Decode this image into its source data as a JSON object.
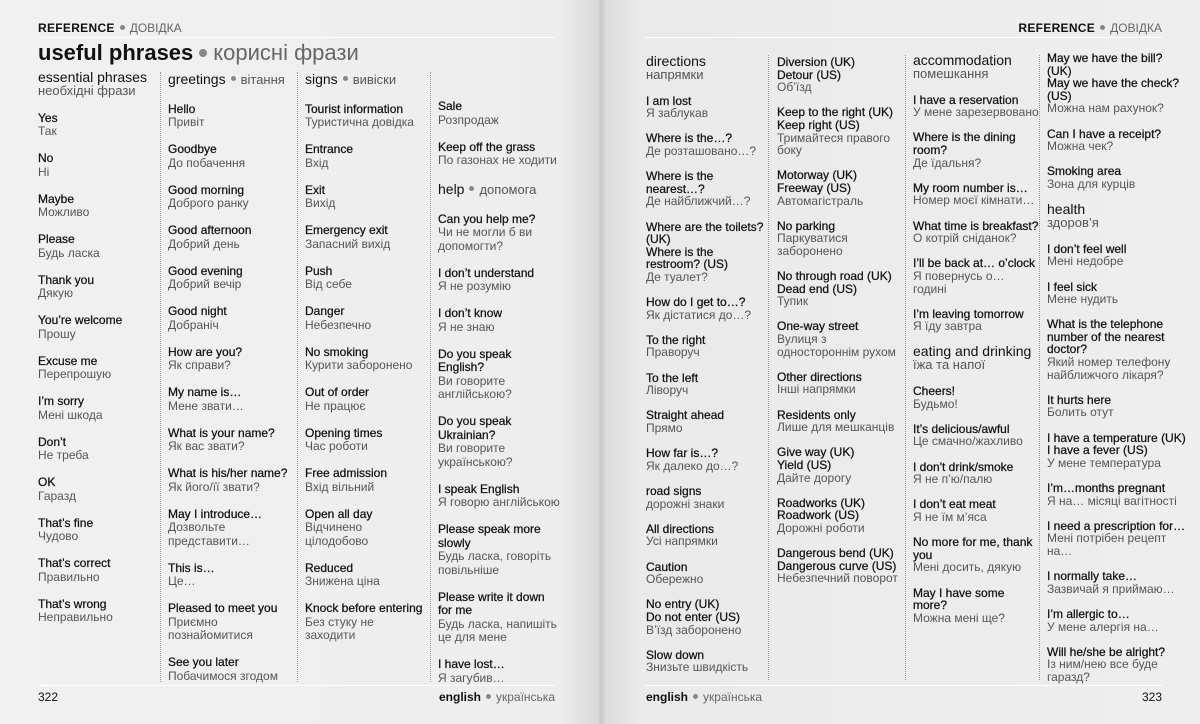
{
  "left_page": {
    "header": {
      "label": "REFERENCE",
      "label_uk": "ДОВІДКА"
    },
    "title": {
      "en": "useful phrases",
      "uk": "корисні фрази"
    },
    "columns": [
      {
        "items": [
          {
            "heading": "essential phrases",
            "heading_uk": "необхідні фрази"
          },
          {
            "en": "Yes",
            "uk": "Так"
          },
          {
            "en": "No",
            "uk": "Ні"
          },
          {
            "en": "Maybe",
            "uk": "Можливо"
          },
          {
            "en": "Please",
            "uk": "Будь ласка"
          },
          {
            "en": "Thank you",
            "uk": "Дякую"
          },
          {
            "en": "You’re welcome",
            "uk": "Прошу"
          },
          {
            "en": "Excuse me",
            "uk": "Перепрошую"
          },
          {
            "en": "I’m sorry",
            "uk": "Мені шкода"
          },
          {
            "en": "Don’t",
            "uk": "Не треба"
          },
          {
            "en": "OK",
            "uk": "Гаразд"
          },
          {
            "en": "That’s fine",
            "uk": "Чудово"
          },
          {
            "en": "That’s correct",
            "uk": "Правильно"
          },
          {
            "en": "That’s wrong",
            "uk": "Неправильно"
          }
        ]
      },
      {
        "items": [
          {
            "heading": "greetings",
            "heading_uk": "вітання"
          },
          {
            "en": "Hello",
            "uk": "Привіт"
          },
          {
            "en": "Goodbye",
            "uk": "До побачення"
          },
          {
            "en": "Good morning",
            "uk": "Доброго ранку"
          },
          {
            "en": "Good afternoon",
            "uk": "Добрий день"
          },
          {
            "en": "Good evening",
            "uk": "Добрий вечір"
          },
          {
            "en": "Good night",
            "uk": "Добраніч"
          },
          {
            "en": "How are you?",
            "uk": "Як справи?"
          },
          {
            "en": "My name is…",
            "uk": "Мене звати…"
          },
          {
            "en": "What is your name?",
            "uk": "Як вас звати?"
          },
          {
            "en": "What is his/her name?",
            "uk": "Як його/її звати?"
          },
          {
            "en": "May I introduce…",
            "uk": "Дозвольте представити…"
          },
          {
            "en": "This is…",
            "uk": "Це…"
          },
          {
            "en": "Pleased to meet you",
            "uk": "Приємно познайомитися"
          },
          {
            "en": "See you later",
            "uk": "Побачимося згодом"
          }
        ]
      },
      {
        "items": [
          {
            "heading": "signs",
            "heading_uk": "вивіски"
          },
          {
            "en": "Tourist information",
            "uk": "Туристична довідка"
          },
          {
            "en": "Entrance",
            "uk": "Вхід"
          },
          {
            "en": "Exit",
            "uk": "Вихід"
          },
          {
            "en": "Emergency exit",
            "uk": "Запасний вихід"
          },
          {
            "en": "Push",
            "uk": "Від себе"
          },
          {
            "en": "Danger",
            "uk": "Небезпечно"
          },
          {
            "en": "No smoking",
            "uk": "Курити заборонено"
          },
          {
            "en": "Out of order",
            "uk": "Не працює"
          },
          {
            "en": "Opening times",
            "uk": "Час роботи"
          },
          {
            "en": "Free admission",
            "uk": "Вхід вільний"
          },
          {
            "en": "Open all day",
            "uk": "Відчинено цілодобово"
          },
          {
            "en": "Reduced",
            "uk": "Знижена ціна"
          },
          {
            "en": "Knock before entering",
            "uk": "Без стуку не заходити"
          }
        ]
      },
      {
        "items": [
          {
            "en": "Sale",
            "uk": "Розпродаж"
          },
          {
            "en": "Keep off the grass",
            "uk": "По газонах не ходити"
          },
          {
            "heading": "help",
            "heading_uk": "допомога"
          },
          {
            "en": "Can you help me?",
            "uk": "Чи не могли б ви допомогти?"
          },
          {
            "en": "I don’t understand",
            "uk": "Я не розумію"
          },
          {
            "en": "I don’t know",
            "uk": "Я не знаю"
          },
          {
            "en": "Do you speak English?",
            "uk": "Ви говорите англійською?"
          },
          {
            "en": "Do you speak Ukrainian?",
            "uk": "Ви говорите українською?"
          },
          {
            "en": "I speak English",
            "uk": "Я говорю англійською"
          },
          {
            "en": "Please speak more slowly",
            "uk": "Будь ласка, говоріть повільніше"
          },
          {
            "en": "Please write it down for me",
            "uk": "Будь ласка, напишіть це для мене"
          },
          {
            "en": "I have lost…",
            "uk": "Я загубив…"
          }
        ]
      }
    ],
    "footer": {
      "page_number": "322",
      "lang": "english",
      "lang_uk": "українська"
    }
  },
  "right_page": {
    "header": {
      "label": "REFERENCE",
      "label_uk": "ДОВІДКА"
    },
    "columns": [
      {
        "items": [
          {
            "heading": "directions",
            "heading_uk": "напрямки"
          },
          {
            "en": "I am lost",
            "uk": "Я заблукав"
          },
          {
            "en": "Where is the…?",
            "uk": "Де розташовано…?"
          },
          {
            "en": "Where is the nearest…?",
            "uk": "Де найближчий…?"
          },
          {
            "en": "Where are the toilets? (UK)\nWhere is the restroom? (US)",
            "uk": "Де туалет?"
          },
          {
            "en": "How do I get to…?",
            "uk": "Як дістатися до…?"
          },
          {
            "en": "To the right",
            "uk": "Праворуч"
          },
          {
            "en": "To the left",
            "uk": "Ліворуч"
          },
          {
            "en": "Straight ahead",
            "uk": "Прямо"
          },
          {
            "en": "How far is…?",
            "uk": "Як далеко до…?"
          },
          {
            "en": "road signs",
            "uk": "дорожні знаки"
          },
          {
            "en": "All directions",
            "uk": "Усі напрямки"
          },
          {
            "en": "Caution",
            "uk": "Обережно"
          },
          {
            "en": "No entry (UK)\nDo not enter (US)",
            "uk": "В’їзд заборонено"
          },
          {
            "en": "Slow down",
            "uk": "Знизьте швидкість"
          }
        ]
      },
      {
        "items": [
          {
            "en": "Diversion (UK)\nDetour (US)",
            "uk": "Об’їзд"
          },
          {
            "en": "Keep to the right (UK)\nKeep right (US)",
            "uk": "Тримайтеся правого боку"
          },
          {
            "en": "Motorway (UK)\nFreeway (US)",
            "uk": "Автомагістраль"
          },
          {
            "en": "No parking",
            "uk": "Паркуватися заборонено"
          },
          {
            "en": "No through road (UK)\nDead end (US)",
            "uk": "Тупик"
          },
          {
            "en": "One-way street",
            "uk": "Вулиця з одностороннім рухом"
          },
          {
            "en": "Other directions",
            "uk": "Інші напрямки"
          },
          {
            "en": "Residents only",
            "uk": "Лише для мешканців"
          },
          {
            "en": "Give way (UK)\nYield (US)",
            "uk": "Дайте дорогу"
          },
          {
            "en": "Roadworks (UK)\nRoadwork (US)",
            "uk": "Дорожні роботи"
          },
          {
            "en": "Dangerous bend (UK)\nDangerous curve (US)",
            "uk": "Небезпечний поворот"
          }
        ]
      },
      {
        "items": [
          {
            "heading": "accommodation",
            "heading_uk": "помешкання"
          },
          {
            "en": "I have a reservation",
            "uk": "У мене зарезервовано"
          },
          {
            "en": "Where is the dining room?",
            "uk": "Де їдальня?"
          },
          {
            "en": "My room number is…",
            "uk": "Номер моєї кімнати…"
          },
          {
            "en": "What time is breakfast?",
            "uk": "О котрій сніданок?"
          },
          {
            "en": "I’ll be back at… o’clock",
            "uk": "Я повернусь о… годині"
          },
          {
            "en": "I’m leaving tomorrow",
            "uk": "Я їду завтра"
          },
          {
            "heading": "eating and drinking",
            "heading_uk": "їжа та напої"
          },
          {
            "en": "Cheers!",
            "uk": "Будьмо!"
          },
          {
            "en": "It’s delicious/awful",
            "uk": "Це смачно/жахливо"
          },
          {
            "en": "I don't drink/smoke",
            "uk": "Я не п’ю/палю"
          },
          {
            "en": "I don’t eat meat",
            "uk": "Я не їм м’яса"
          },
          {
            "en": "No more for me, thank you",
            "uk": "Мені досить, дякую"
          },
          {
            "en": "May I have some more?",
            "uk": "Можна мені ще?"
          }
        ]
      },
      {
        "items": [
          {
            "en": "May we have the bill? (UK)\nMay we have the check? (US)",
            "uk": "Можна нам рахунок?"
          },
          {
            "en": "Can I have a receipt?",
            "uk": "Можна чек?"
          },
          {
            "en": "Smoking area",
            "uk": "Зона для курців"
          },
          {
            "heading": "health",
            "heading_uk": "здоров’я"
          },
          {
            "en": "I don’t feel well",
            "uk": "Мені недобре"
          },
          {
            "en": "I feel sick",
            "uk": "Мене нудить"
          },
          {
            "en": "What is the telephone number of the nearest doctor?",
            "uk": "Який номер телефону найближчого лікаря?"
          },
          {
            "en": "It hurts here",
            "uk": "Болить отут"
          },
          {
            "en": "I have a temperature (UK)\nI have a fever (US)",
            "uk": "У мене температура"
          },
          {
            "en": "I’m…months pregnant",
            "uk": "Я на… місяці вагітності"
          },
          {
            "en": "I need a prescription for…",
            "uk": "Мені потрібен рецепт на…"
          },
          {
            "en": "I normally take…",
            "uk": "Зазвичай я приймаю…"
          },
          {
            "en": "I’m allergic to…",
            "uk": "У мене алергія на…"
          },
          {
            "en": "Will he/she be alright?",
            "uk": "Із ним/нею все буде гаразд?"
          }
        ]
      }
    ],
    "footer": {
      "page_number": "323",
      "lang": "english",
      "lang_uk": "українська"
    }
  }
}
